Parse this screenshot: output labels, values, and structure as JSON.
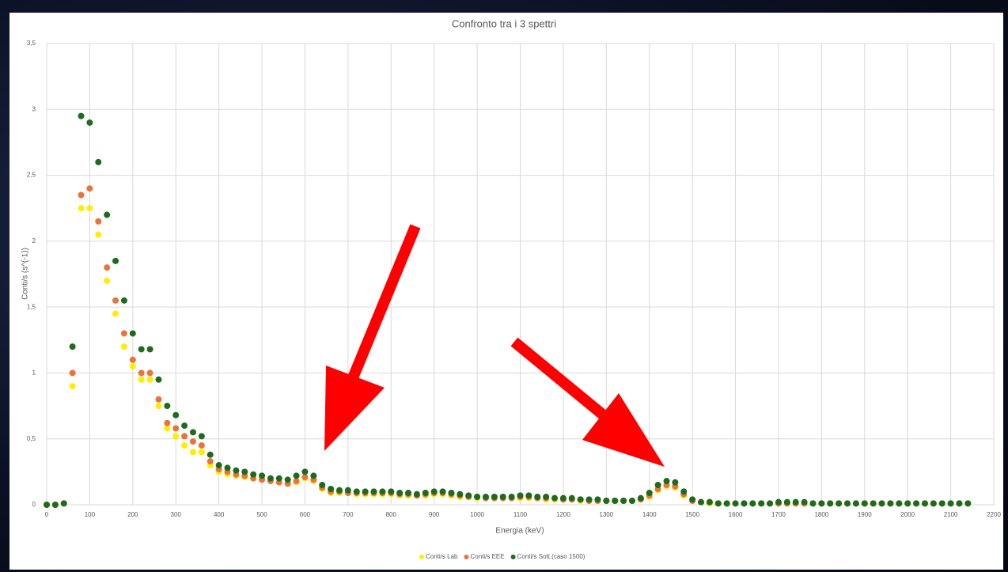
{
  "chart_data": {
    "type": "scatter",
    "title": "Confronto tra i 3 spettri",
    "x_label": "Energia (keV)",
    "y_label": "Conti/s (s^(-1))",
    "x": [
      0,
      20,
      40,
      60,
      80,
      100,
      120,
      140,
      160,
      180,
      200,
      220,
      240,
      260,
      280,
      300,
      320,
      340,
      360,
      380,
      400,
      420,
      440,
      460,
      480,
      500,
      520,
      540,
      560,
      580,
      600,
      620,
      640,
      660,
      680,
      700,
      720,
      740,
      760,
      780,
      800,
      820,
      840,
      860,
      880,
      900,
      920,
      940,
      960,
      980,
      1000,
      1020,
      1040,
      1060,
      1080,
      1100,
      1120,
      1140,
      1160,
      1180,
      1200,
      1220,
      1240,
      1260,
      1280,
      1300,
      1320,
      1340,
      1360,
      1380,
      1400,
      1420,
      1440,
      1460,
      1480,
      1500,
      1520,
      1540,
      1560,
      1580,
      1600,
      1620,
      1640,
      1660,
      1680,
      1700,
      1720,
      1740,
      1760,
      1780,
      1800,
      1820,
      1840,
      1860,
      1880,
      1900,
      1920,
      1940,
      1960,
      1980,
      2000,
      2020,
      2040,
      2060,
      2080,
      2100,
      2120,
      2140
    ],
    "series": [
      {
        "name": "Conti/s Lab",
        "color": "#ffee00",
        "values": [
          0,
          0,
          0.01,
          0.9,
          2.25,
          2.25,
          2.05,
          1.7,
          1.45,
          1.2,
          1.05,
          0.95,
          0.95,
          0.75,
          0.58,
          0.52,
          0.45,
          0.4,
          0.4,
          0.3,
          0.25,
          0.23,
          0.22,
          0.21,
          0.2,
          0.2,
          0.18,
          0.17,
          0.16,
          0.17,
          0.2,
          0.18,
          0.12,
          0.09,
          0.09,
          0.09,
          0.08,
          0.08,
          0.08,
          0.08,
          0.08,
          0.07,
          0.07,
          0.07,
          0.07,
          0.08,
          0.08,
          0.07,
          0.06,
          0.06,
          0.05,
          0.05,
          0.05,
          0.05,
          0.05,
          0.05,
          0.05,
          0.05,
          0.04,
          0.04,
          0.04,
          0.04,
          0.03,
          0.03,
          0.03,
          0.03,
          0.03,
          0.03,
          0.03,
          0.04,
          0.06,
          0.11,
          0.14,
          0.13,
          0.07,
          0.03,
          0.02,
          0.01,
          0.01,
          0.01,
          0.01,
          0.01,
          0.01,
          0.01,
          0.01,
          0.01,
          0.01,
          0.01,
          0.01,
          0.01,
          0.01,
          0.01,
          0.01,
          0.01,
          0.01,
          0.01,
          0.01,
          0.01,
          0.01,
          0.01,
          0.01,
          0.01,
          0.01,
          0.01,
          0.01,
          0.01,
          0.01,
          0.01
        ]
      },
      {
        "name": "Conti/s EEE",
        "color": "#e8743b",
        "values": [
          0,
          0,
          0.01,
          1.0,
          2.35,
          2.4,
          2.15,
          1.8,
          1.55,
          1.3,
          1.1,
          1.0,
          1.0,
          0.8,
          0.62,
          0.58,
          0.52,
          0.48,
          0.45,
          0.33,
          0.27,
          0.25,
          0.23,
          0.22,
          0.2,
          0.19,
          0.18,
          0.17,
          0.16,
          0.18,
          0.21,
          0.19,
          0.13,
          0.1,
          0.1,
          0.09,
          0.09,
          0.09,
          0.09,
          0.09,
          0.09,
          0.08,
          0.08,
          0.07,
          0.08,
          0.09,
          0.09,
          0.08,
          0.07,
          0.06,
          0.06,
          0.05,
          0.05,
          0.05,
          0.05,
          0.06,
          0.06,
          0.05,
          0.05,
          0.05,
          0.04,
          0.04,
          0.04,
          0.03,
          0.03,
          0.03,
          0.03,
          0.03,
          0.03,
          0.04,
          0.07,
          0.12,
          0.15,
          0.14,
          0.08,
          0.03,
          0.02,
          0.02,
          0.01,
          0.01,
          0.01,
          0.01,
          0.01,
          0.01,
          0.01,
          0.01,
          0.01,
          0.01,
          0.01,
          0.01,
          0.01,
          0.01,
          0.01,
          0.01,
          0.01,
          0.01,
          0.01,
          0.01,
          0.01,
          0.01,
          0.01,
          0.01,
          0.01,
          0.01,
          0.01,
          0.01,
          0.01,
          0.01
        ]
      },
      {
        "name": "Conti/s Sott.(caso 1500)",
        "color": "#1e6b1e",
        "values": [
          0,
          0,
          0.01,
          1.2,
          2.95,
          2.9,
          2.6,
          2.2,
          1.85,
          1.55,
          1.3,
          1.18,
          1.18,
          0.95,
          0.75,
          0.68,
          0.6,
          0.55,
          0.52,
          0.38,
          0.3,
          0.28,
          0.26,
          0.25,
          0.23,
          0.22,
          0.2,
          0.2,
          0.19,
          0.22,
          0.25,
          0.22,
          0.15,
          0.12,
          0.11,
          0.11,
          0.1,
          0.1,
          0.1,
          0.1,
          0.1,
          0.09,
          0.09,
          0.08,
          0.09,
          0.1,
          0.1,
          0.09,
          0.08,
          0.07,
          0.06,
          0.06,
          0.06,
          0.06,
          0.06,
          0.07,
          0.07,
          0.06,
          0.06,
          0.05,
          0.05,
          0.05,
          0.04,
          0.04,
          0.04,
          0.03,
          0.03,
          0.03,
          0.03,
          0.05,
          0.09,
          0.15,
          0.18,
          0.17,
          0.1,
          0.04,
          0.02,
          0.02,
          0.01,
          0.01,
          0.01,
          0.01,
          0.01,
          0.01,
          0.01,
          0.02,
          0.02,
          0.02,
          0.02,
          0.01,
          0.01,
          0.01,
          0.01,
          0.01,
          0.01,
          0.01,
          0.01,
          0.01,
          0.01,
          0.01,
          0.01,
          0.01,
          0.01,
          0.01,
          0.01,
          0.01,
          0.01,
          0.01
        ]
      }
    ],
    "xlim": [
      0,
      2200
    ],
    "xticks": [
      0,
      100,
      200,
      300,
      400,
      500,
      600,
      700,
      800,
      900,
      1000,
      1100,
      1200,
      1300,
      1400,
      1500,
      1600,
      1700,
      1800,
      1900,
      2000,
      2100,
      2200
    ],
    "ylim": [
      0,
      3.5
    ],
    "yticks": [
      0,
      {
        "value": 0.5,
        "label": "0,5"
      },
      1,
      {
        "value": 1.5,
        "label": "1,5"
      },
      2,
      {
        "value": 2.5,
        "label": "2,5"
      },
      3,
      {
        "value": 3.5,
        "label": "3,5"
      }
    ],
    "grid": true,
    "legend": "bottom"
  }
}
